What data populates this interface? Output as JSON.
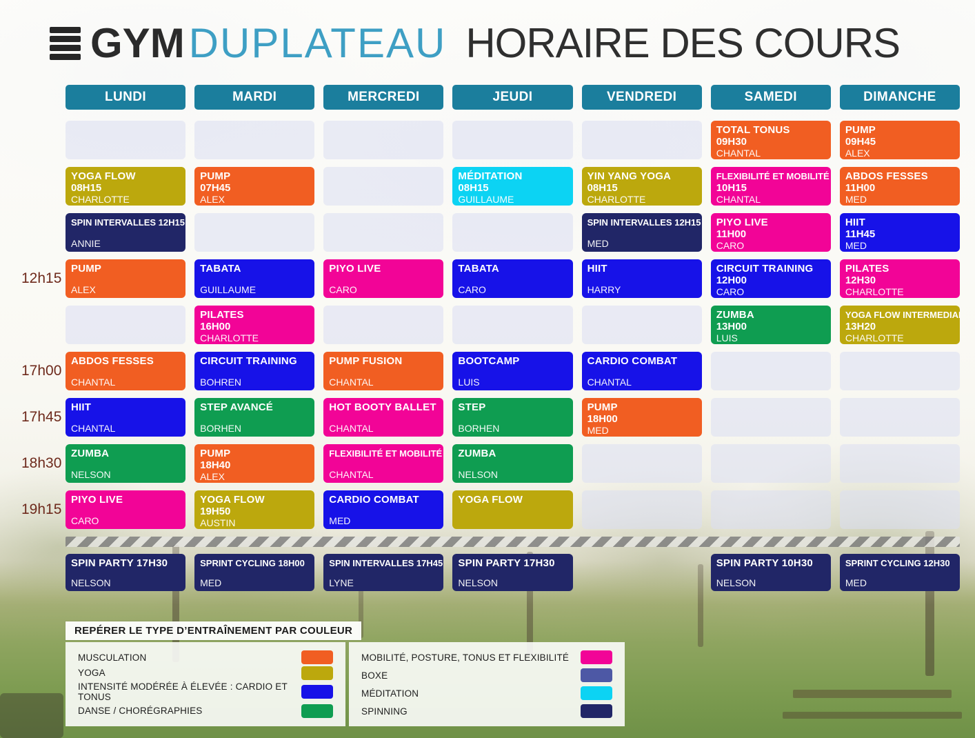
{
  "palette": {
    "musculation": "#F15E22",
    "yoga": "#BCA80D",
    "cardio": "#1712E8",
    "danse": "#0F9D51",
    "mobilite": "#F20497",
    "boxe": "#4D58A5",
    "meditation": "#0CD3F3",
    "spinning": "#212667",
    "day_header": "#1B7E9D",
    "logo_blue": "#3E9FC4",
    "time_label": "#6E2A1C"
  },
  "header": {
    "logo_gym": "GYM",
    "logo_plateau": "DUPLATEAU",
    "title": "HORAIRE DES COURS"
  },
  "days": [
    "LUNDI",
    "MARDI",
    "MERCREDI",
    "JEUDI",
    "VENDREDI",
    "SAMEDI",
    "DIMANCHE"
  ],
  "grid": {
    "rows": [
      {
        "time": "",
        "cells": [
          null,
          null,
          null,
          null,
          null,
          {
            "title": "TOTAL TONUS",
            "time": "09H30",
            "name": "CHANTAL",
            "type": "musculation"
          },
          {
            "title": "PUMP",
            "time": "09H45",
            "name": "ALEX",
            "type": "musculation"
          }
        ]
      },
      {
        "time": "",
        "cells": [
          {
            "title": "YOGA FLOW",
            "time": "08H15",
            "name": "CHARLOTTE",
            "type": "yoga"
          },
          {
            "title": "PUMP",
            "time": "07H45",
            "name": "ALEX",
            "type": "musculation"
          },
          null,
          {
            "title": "MÉDITATION",
            "time": "08H15",
            "name": "GUILLAUME",
            "type": "meditation"
          },
          {
            "title": "YIN YANG YOGA",
            "time": "08H15",
            "name": "CHARLOTTE",
            "type": "yoga"
          },
          {
            "title": "FLEXIBILITÉ ET MOBILITÉ",
            "time": "10H15",
            "name": "CHANTAL",
            "type": "mobilite"
          },
          {
            "title": "ABDOS FESSES",
            "time": "11H00",
            "name": "MED",
            "type": "musculation"
          }
        ]
      },
      {
        "time": "",
        "cells": [
          {
            "title": "SPIN INTERVALLES 12H15",
            "time": "",
            "name": "ANNIE",
            "type": "spinning"
          },
          null,
          null,
          null,
          {
            "title": "SPIN INTERVALLES 12H15",
            "time": "",
            "name": "MED",
            "type": "spinning"
          },
          {
            "title": "PIYO LIVE",
            "time": "11H00",
            "name": "CARO",
            "type": "mobilite"
          },
          {
            "title": "HIIT",
            "time": "11H45",
            "name": "MED",
            "type": "cardio"
          }
        ]
      },
      {
        "time": "12h15",
        "cells": [
          {
            "title": "PUMP",
            "time": "",
            "name": "ALEX",
            "type": "musculation"
          },
          {
            "title": "TABATA",
            "time": "",
            "name": "GUILLAUME",
            "type": "cardio"
          },
          {
            "title": "PIYO LIVE",
            "time": "",
            "name": "CARO",
            "type": "mobilite"
          },
          {
            "title": "TABATA",
            "time": "",
            "name": "CARO",
            "type": "cardio"
          },
          {
            "title": "HIIT",
            "time": "",
            "name": "HARRY",
            "type": "cardio"
          },
          {
            "title": "CIRCUIT TRAINING",
            "time": "12H00",
            "name": "CARO",
            "type": "cardio"
          },
          {
            "title": "PILATES",
            "time": "12H30",
            "name": "CHARLOTTE",
            "type": "mobilite"
          }
        ]
      },
      {
        "time": "",
        "cells": [
          null,
          {
            "title": "PILATES",
            "time": "16H00",
            "name": "CHARLOTTE",
            "type": "mobilite"
          },
          null,
          null,
          null,
          {
            "title": "ZUMBA",
            "time": "13H00",
            "name": "LUIS",
            "type": "danse"
          },
          {
            "title": "YOGA FLOW INTERMEDIAIRE",
            "time": "13H20",
            "name": "CHARLOTTE",
            "type": "yoga"
          }
        ]
      },
      {
        "time": "17h00",
        "cells": [
          {
            "title": "ABDOS FESSES",
            "time": "",
            "name": "CHANTAL",
            "type": "musculation"
          },
          {
            "title": "CIRCUIT TRAINING",
            "time": "",
            "name": "BOHREN",
            "type": "cardio"
          },
          {
            "title": "PUMP FUSION",
            "time": "",
            "name": "CHANTAL",
            "type": "musculation"
          },
          {
            "title": "BOOTCAMP",
            "time": "",
            "name": "LUIS",
            "type": "cardio"
          },
          {
            "title": "CARDIO COMBAT",
            "time": "",
            "name": "CHANTAL",
            "type": "cardio"
          },
          null,
          null
        ]
      },
      {
        "time": "17h45",
        "cells": [
          {
            "title": "HIIT",
            "time": "",
            "name": "CHANTAL",
            "type": "cardio"
          },
          {
            "title": "STEP AVANCÉ",
            "time": "",
            "name": "BORHEN",
            "type": "danse"
          },
          {
            "title": "HOT BOOTY BALLET",
            "time": "",
            "name": "CHANTAL",
            "type": "mobilite"
          },
          {
            "title": "STEP",
            "time": "",
            "name": "BORHEN",
            "type": "danse"
          },
          {
            "title": "PUMP",
            "time": "18H00",
            "name": "MED",
            "type": "musculation"
          },
          null,
          null
        ]
      },
      {
        "time": "18h30",
        "cells": [
          {
            "title": "ZUMBA",
            "time": "",
            "name": "NELSON",
            "type": "danse"
          },
          {
            "title": "PUMP",
            "time": "18H40",
            "name": "ALEX",
            "type": "musculation"
          },
          {
            "title": "FLEXIBILITÉ ET MOBILITÉ",
            "time": "",
            "name": "CHANTAL",
            "type": "mobilite"
          },
          {
            "title": "ZUMBA",
            "time": "",
            "name": "NELSON",
            "type": "danse"
          },
          null,
          null,
          null
        ]
      },
      {
        "time": "19h15",
        "cells": [
          {
            "title": "PIYO LIVE",
            "time": "",
            "name": "CARO",
            "type": "mobilite"
          },
          {
            "title": "YOGA FLOW",
            "time": "19H50",
            "name": "AUSTIN",
            "type": "yoga"
          },
          {
            "title": "CARDIO COMBAT",
            "time": "",
            "name": "MED",
            "type": "cardio"
          },
          {
            "title": "YOGA FLOW",
            "time": "",
            "name": "",
            "type": "yoga"
          },
          null,
          null,
          null
        ]
      }
    ]
  },
  "spin_row": {
    "cells": [
      {
        "title": "SPIN PARTY 17H30",
        "time": "",
        "name": "NELSON",
        "type": "spinning"
      },
      {
        "title": "SPRINT CYCLING 18H00",
        "time": "",
        "name": "MED",
        "type": "spinning"
      },
      {
        "title": "SPIN INTERVALLES 17H45",
        "time": "",
        "name": "LYNE",
        "type": "spinning"
      },
      {
        "title": "SPIN PARTY 17H30",
        "time": "",
        "name": "NELSON",
        "type": "spinning"
      },
      null,
      {
        "title": "SPIN PARTY 10H30",
        "time": "",
        "name": "NELSON",
        "type": "spinning"
      },
      {
        "title": "SPRINT CYCLING 12H30",
        "time": "",
        "name": "MED",
        "type": "spinning"
      }
    ]
  },
  "legend": {
    "title": "REPÉRER LE TYPE D’ENTRAÎNEMENT PAR COULEUR",
    "left": [
      {
        "label": "MUSCULATION",
        "type": "musculation"
      },
      {
        "label": "YOGA",
        "type": "yoga"
      },
      {
        "label": "INTENSITÉ MODÉRÉE À ÉLEVÉE : CARDIO ET TONUS",
        "type": "cardio"
      },
      {
        "label": "DANSE / CHORÉGRAPHIES",
        "type": "danse"
      }
    ],
    "right": [
      {
        "label": "MOBILITÉ, POSTURE, TONUS ET FLEXIBILITÉ",
        "type": "mobilite"
      },
      {
        "label": "BOXE",
        "type": "boxe"
      },
      {
        "label": "MÉDITATION",
        "type": "meditation"
      },
      {
        "label": "SPINNING",
        "type": "spinning"
      }
    ]
  }
}
